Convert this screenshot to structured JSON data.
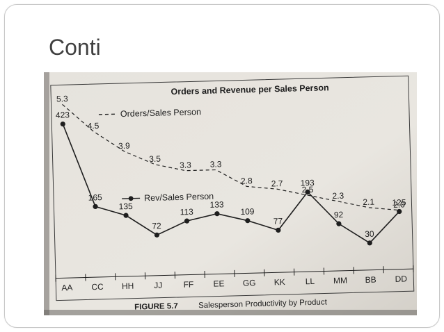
{
  "slide": {
    "title": "Conti"
  },
  "chart_data": {
    "type": "line",
    "title": "Orders and Revenue per Sales Person",
    "caption_label": "FIGURE 5.7",
    "caption_text": "Salesperson Productivity by Product",
    "categories": [
      "AA",
      "CC",
      "HH",
      "JJ",
      "FF",
      "EE",
      "GG",
      "KK",
      "LL",
      "MM",
      "BB",
      "DD"
    ],
    "series": [
      {
        "name": "Orders/Sales Person",
        "style": "dashed",
        "values": [
          5.3,
          4.5,
          3.9,
          3.5,
          3.3,
          3.3,
          2.8,
          2.7,
          2.5,
          2.3,
          2.1,
          2.0
        ]
      },
      {
        "name": "Rev/Sales Person",
        "style": "solid-markers",
        "values": [
          423,
          165,
          135,
          72,
          113,
          133,
          109,
          77,
          193,
          92,
          30,
          125
        ]
      }
    ],
    "legend_placement": "inside-left",
    "grid": false,
    "colors": {
      "paper": "#e8e5df",
      "ink": "#1e1e1e",
      "panel": "#d9d6d0"
    }
  }
}
